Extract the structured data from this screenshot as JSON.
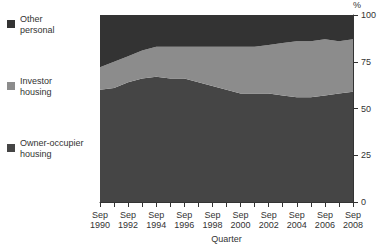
{
  "chart_data": {
    "type": "area",
    "stacked": true,
    "grid": false,
    "legend": "left",
    "x_label": "Quarter",
    "y_label": "%",
    "categories": [
      "Sep 1990",
      null,
      "Sep 1992",
      null,
      "Sep 1994",
      null,
      "Sep 1996",
      null,
      "Sep 1998",
      null,
      "Sep 2000",
      null,
      "Sep 2002",
      null,
      "Sep 2004",
      null,
      "Sep 2006",
      null,
      "Sep 2008"
    ],
    "ylim": [
      0,
      100
    ],
    "yticks": [
      0,
      25,
      50,
      75,
      100
    ],
    "series": [
      {
        "name": "Owner-occupier housing",
        "color": "#454545",
        "values": [
          60,
          61,
          64,
          66,
          67,
          66,
          66,
          64,
          62,
          60,
          58,
          58,
          58,
          57,
          56,
          56,
          57,
          58,
          59
        ]
      },
      {
        "name": "Investor housing",
        "color": "#8c8c8c",
        "values": [
          12,
          14,
          14,
          15,
          16,
          17,
          17,
          19,
          21,
          23,
          25,
          25,
          26,
          28,
          30,
          30,
          30,
          28,
          28
        ]
      },
      {
        "name": "Other personal",
        "color": "#333333",
        "values": [
          28,
          25,
          22,
          19,
          17,
          17,
          17,
          17,
          17,
          17,
          17,
          17,
          16,
          15,
          14,
          14,
          13,
          14,
          13
        ]
      }
    ]
  }
}
